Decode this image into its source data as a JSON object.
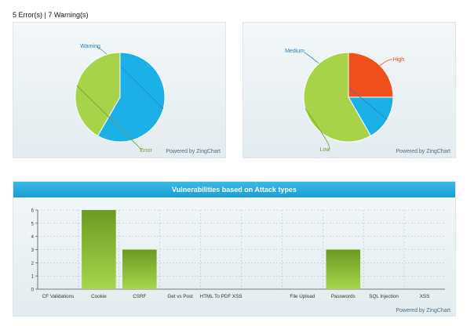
{
  "summary": "5 Error(s) | 7 Warning(s)",
  "powered_by": "Powered by ZingChart",
  "chart_data": [
    {
      "type": "pie",
      "categories": [
        "Warning",
        "Error"
      ],
      "values": [
        7,
        5
      ],
      "colors": [
        "#1cb0e8",
        "#a6d34a"
      ],
      "label_colors": [
        "#2a7fb5",
        "#6f9a2a"
      ],
      "title": ""
    },
    {
      "type": "pie",
      "categories": [
        "High",
        "Medium",
        "Low"
      ],
      "values": [
        3,
        2,
        7
      ],
      "colors": [
        "#f0501c",
        "#1cb0e8",
        "#a6d34a"
      ],
      "label_colors": [
        "#e04a1a",
        "#2a7fb5",
        "#6f9a2a"
      ],
      "title": ""
    },
    {
      "type": "bar",
      "title": "Vulnerabilities based on Attack types",
      "categories": [
        "CF Validations",
        "Cookie",
        "CSRF",
        "Get vs Post",
        "HTML To PDF XSS",
        "",
        "File Upload",
        "Passwords",
        "SQL Injection",
        "XSS"
      ],
      "values": [
        0,
        6,
        3,
        0,
        0,
        0,
        0,
        3,
        0,
        0
      ],
      "ylim": [
        0,
        6
      ],
      "yticks": [
        "0",
        "1",
        "2",
        "3",
        "4",
        "5",
        "6"
      ],
      "grid": true,
      "xlabel": "",
      "ylabel": ""
    }
  ]
}
